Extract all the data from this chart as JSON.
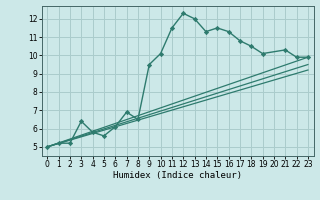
{
  "title": "",
  "xlabel": "Humidex (Indice chaleur)",
  "ylabel": "",
  "bg_color": "#cce8e8",
  "grid_color": "#aacccc",
  "line_color": "#2e7b6e",
  "xlim": [
    -0.5,
    23.5
  ],
  "ylim": [
    4.5,
    12.7
  ],
  "xticks": [
    0,
    1,
    2,
    3,
    4,
    5,
    6,
    7,
    8,
    9,
    10,
    11,
    12,
    13,
    14,
    15,
    16,
    17,
    18,
    19,
    20,
    21,
    22,
    23
  ],
  "yticks": [
    5,
    6,
    7,
    8,
    9,
    10,
    11,
    12
  ],
  "series": [
    {
      "x": [
        0,
        1,
        2,
        3,
        4,
        5,
        6,
        7,
        8,
        9,
        10,
        11,
        12,
        13,
        14,
        15,
        16,
        17,
        18,
        19,
        21,
        22,
        23
      ],
      "y": [
        5.0,
        5.2,
        5.2,
        6.4,
        5.8,
        5.6,
        6.1,
        6.9,
        6.5,
        9.5,
        10.1,
        11.5,
        12.3,
        12.0,
        11.3,
        11.5,
        11.3,
        10.8,
        10.5,
        10.1,
        10.3,
        9.9,
        9.9
      ],
      "marker": true
    },
    {
      "x": [
        0,
        23
      ],
      "y": [
        5.0,
        9.9
      ],
      "marker": false
    },
    {
      "x": [
        0,
        23
      ],
      "y": [
        5.0,
        9.5
      ],
      "marker": false
    },
    {
      "x": [
        0,
        23
      ],
      "y": [
        5.0,
        9.2
      ],
      "marker": false
    }
  ]
}
